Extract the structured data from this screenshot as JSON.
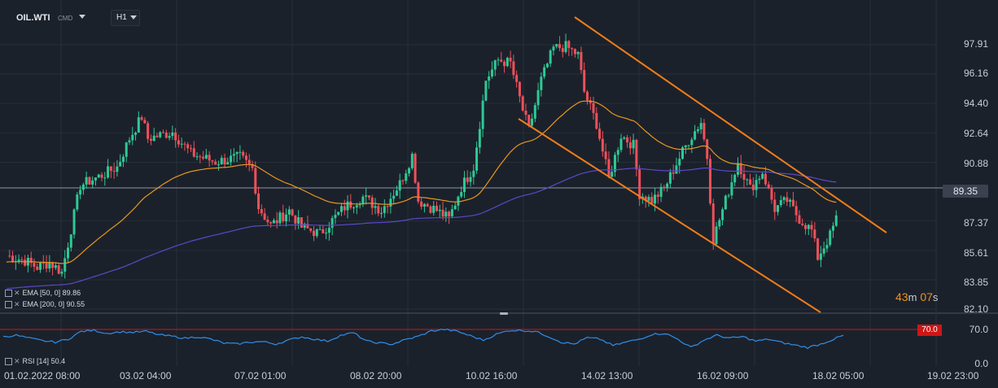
{
  "header": {
    "symbol": "OIL.WTI",
    "symbol_type": "CMD",
    "timeframe": "H1"
  },
  "colors": {
    "bull": "#2ec995",
    "bear": "#f0505a",
    "ema50": "#e8961e",
    "ema200": "#5b49c8",
    "channel": "#f07d1a",
    "rsi": "#2f8fe8",
    "rsi_level": "#d01515"
  },
  "price_axis": {
    "labels": [
      "97.91",
      "96.16",
      "94.40",
      "92.64",
      "90.88",
      "89.35",
      "87.37",
      "85.61",
      "83.85",
      "82.10"
    ],
    "current": "89.35"
  },
  "countdown": {
    "minutes": "43",
    "m": "m",
    "seconds": "07",
    "s": "s"
  },
  "indicators": {
    "ema50": {
      "label": "EMA [50, 0]",
      "value": "89.86"
    },
    "ema200": {
      "label": "EMA [200, 0]",
      "value": "90.55"
    },
    "rsi": {
      "label": "RSI [14]",
      "value": "50.4",
      "level_label": "70.0",
      "axis_top": "70.0",
      "axis_bottom": "0.0"
    }
  },
  "time_axis": [
    "01.02.2022 08:00",
    "03.02 04:00",
    "07.02 01:00",
    "08.02 20:00",
    "10.02 16:00",
    "14.02 13:00",
    "16.02 09:00",
    "18.02 05:00",
    "19.02 23:00"
  ],
  "chart_data": {
    "type": "candlestick",
    "ylim": [
      82.1,
      98.5
    ],
    "key_points": [
      {
        "t": 0,
        "p": 85.3
      },
      {
        "t": 3,
        "p": 85.0
      },
      {
        "t": 5,
        "p": 84.6
      },
      {
        "t": 7,
        "p": 84.9
      },
      {
        "t": 9,
        "p": 84.3
      },
      {
        "t": 10,
        "p": 86.0
      },
      {
        "t": 12,
        "p": 89.5
      },
      {
        "t": 16,
        "p": 90.2
      },
      {
        "t": 18,
        "p": 90.6
      },
      {
        "t": 20,
        "p": 92.3
      },
      {
        "t": 22,
        "p": 93.6
      },
      {
        "t": 23,
        "p": 92.3
      },
      {
        "t": 27,
        "p": 92.7
      },
      {
        "t": 30,
        "p": 91.4
      },
      {
        "t": 34,
        "p": 90.9
      },
      {
        "t": 38,
        "p": 91.2
      },
      {
        "t": 40,
        "p": 90.5
      },
      {
        "t": 41,
        "p": 88.2
      },
      {
        "t": 43,
        "p": 87.1
      },
      {
        "t": 46,
        "p": 88.0
      },
      {
        "t": 48,
        "p": 87.0
      },
      {
        "t": 51,
        "p": 86.6
      },
      {
        "t": 55,
        "p": 88.2
      },
      {
        "t": 58,
        "p": 88.8
      },
      {
        "t": 61,
        "p": 88.0
      },
      {
        "t": 64,
        "p": 89.6
      },
      {
        "t": 66,
        "p": 91.3
      },
      {
        "t": 67,
        "p": 88.6
      },
      {
        "t": 70,
        "p": 88.0
      },
      {
        "t": 72,
        "p": 87.5
      },
      {
        "t": 74,
        "p": 89.4
      },
      {
        "t": 76,
        "p": 90.6
      },
      {
        "t": 78,
        "p": 95.8
      },
      {
        "t": 80,
        "p": 97.0
      },
      {
        "t": 82,
        "p": 96.8
      },
      {
        "t": 84,
        "p": 94.0
      },
      {
        "t": 85,
        "p": 92.8
      },
      {
        "t": 87,
        "p": 95.8
      },
      {
        "t": 89,
        "p": 97.7
      },
      {
        "t": 91,
        "p": 97.8
      },
      {
        "t": 93,
        "p": 97.3
      },
      {
        "t": 94,
        "p": 95.1
      },
      {
        "t": 96,
        "p": 93.2
      },
      {
        "t": 98,
        "p": 89.9
      },
      {
        "t": 100,
        "p": 92.5
      },
      {
        "t": 102,
        "p": 91.9
      },
      {
        "t": 103,
        "p": 89.0
      },
      {
        "t": 105,
        "p": 88.6
      },
      {
        "t": 107,
        "p": 89.3
      },
      {
        "t": 109,
        "p": 90.8
      },
      {
        "t": 111,
        "p": 92.2
      },
      {
        "t": 113,
        "p": 93.3
      },
      {
        "t": 114,
        "p": 91.2
      },
      {
        "t": 115,
        "p": 86.3
      },
      {
        "t": 117,
        "p": 88.6
      },
      {
        "t": 119,
        "p": 90.9
      },
      {
        "t": 121,
        "p": 89.3
      },
      {
        "t": 123,
        "p": 90.3
      },
      {
        "t": 125,
        "p": 88.1
      },
      {
        "t": 127,
        "p": 88.6
      },
      {
        "t": 129,
        "p": 87.5
      },
      {
        "t": 131,
        "p": 86.8
      },
      {
        "t": 132,
        "p": 85.2
      },
      {
        "t": 134,
        "p": 86.5
      },
      {
        "t": 135,
        "p": 87.5
      }
    ],
    "rsi": [
      55,
      58,
      52,
      47,
      44,
      50,
      66,
      68,
      62,
      65,
      64,
      66,
      59,
      56,
      52,
      55,
      50,
      42,
      40,
      44,
      45,
      40,
      48,
      55,
      50,
      46,
      58,
      63,
      46,
      42,
      40,
      49,
      56,
      67,
      70,
      66,
      57,
      48,
      60,
      68,
      68,
      66,
      56,
      44,
      40,
      53,
      50,
      37,
      44,
      50,
      60,
      62,
      50,
      33,
      48,
      58,
      52,
      55,
      46,
      50,
      43,
      38,
      33,
      40,
      50
    ]
  }
}
